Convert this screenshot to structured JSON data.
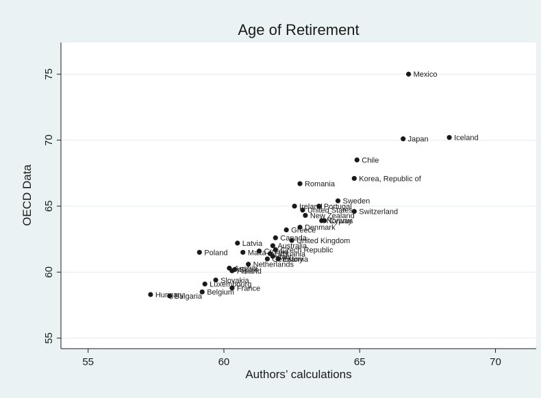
{
  "chart_data": {
    "type": "scatter",
    "title": "Age of Retirement",
    "xlabel": "Authors’ calculations",
    "ylabel": "OECD Data",
    "xlim": [
      54,
      71.5
    ],
    "ylim": [
      54.2,
      77.4
    ],
    "xticks": [
      55,
      60,
      65,
      70
    ],
    "yticks": [
      55,
      60,
      65,
      70,
      75
    ],
    "grid": true,
    "legend": "none",
    "colors": {
      "point": "#1a1a1a",
      "plot_bg": "#ffffff",
      "page_bg": "#eaf2f3",
      "grid": "#e4ecee"
    },
    "points": [
      {
        "x": 66.8,
        "y": 75.0,
        "label": "Mexico"
      },
      {
        "x": 68.3,
        "y": 70.2,
        "label": "Iceland"
      },
      {
        "x": 66.6,
        "y": 70.1,
        "label": "Japan"
      },
      {
        "x": 64.9,
        "y": 68.5,
        "label": "Chile"
      },
      {
        "x": 64.8,
        "y": 67.1,
        "label": "Korea, Republic of"
      },
      {
        "x": 62.8,
        "y": 66.7,
        "label": "Romania"
      },
      {
        "x": 64.2,
        "y": 65.4,
        "label": "Sweden"
      },
      {
        "x": 62.6,
        "y": 65.0,
        "label": "Ireland"
      },
      {
        "x": 63.5,
        "y": 65.0,
        "label": "Portugal"
      },
      {
        "x": 62.9,
        "y": 64.7,
        "label": "United States"
      },
      {
        "x": 64.8,
        "y": 64.6,
        "label": "Switzerland"
      },
      {
        "x": 63.0,
        "y": 64.3,
        "label": "New Zealand"
      },
      {
        "x": 63.6,
        "y": 63.9,
        "label": "Norway"
      },
      {
        "x": 63.7,
        "y": 63.9,
        "label": "Cyprus"
      },
      {
        "x": 62.8,
        "y": 63.4,
        "label": "Denmark"
      },
      {
        "x": 62.3,
        "y": 63.2,
        "label": "Greece"
      },
      {
        "x": 61.9,
        "y": 62.6,
        "label": "Canada"
      },
      {
        "x": 62.5,
        "y": 62.4,
        "label": "United Kingdom"
      },
      {
        "x": 60.5,
        "y": 62.2,
        "label": "Latvia"
      },
      {
        "x": 61.8,
        "y": 62.0,
        "label": "Australia"
      },
      {
        "x": 61.9,
        "y": 61.7,
        "label": "Czech Republic"
      },
      {
        "x": 61.3,
        "y": 61.6,
        "label": "Croatia"
      },
      {
        "x": 61.7,
        "y": 61.4,
        "label": "Lithuania"
      },
      {
        "x": 61.8,
        "y": 61.2,
        "label": "Italy"
      },
      {
        "x": 59.1,
        "y": 61.5,
        "label": "Poland"
      },
      {
        "x": 60.7,
        "y": 61.5,
        "label": "Malta"
      },
      {
        "x": 61.6,
        "y": 61.0,
        "label": "Germany"
      },
      {
        "x": 62.0,
        "y": 61.0,
        "label": "Estonia"
      },
      {
        "x": 60.9,
        "y": 60.6,
        "label": "Netherlands"
      },
      {
        "x": 60.2,
        "y": 60.3,
        "label": "Austria"
      },
      {
        "x": 60.4,
        "y": 60.2,
        "label": "Spain"
      },
      {
        "x": 60.3,
        "y": 60.1,
        "label": "Finland"
      },
      {
        "x": 59.7,
        "y": 59.4,
        "label": "Slovakia"
      },
      {
        "x": 59.3,
        "y": 59.1,
        "label": "Luxembourg"
      },
      {
        "x": 60.3,
        "y": 58.8,
        "label": "France"
      },
      {
        "x": 59.2,
        "y": 58.5,
        "label": "Belgium"
      },
      {
        "x": 57.3,
        "y": 58.3,
        "label": "Hungary"
      },
      {
        "x": 58.0,
        "y": 58.2,
        "label": "Bulgaria"
      }
    ]
  }
}
